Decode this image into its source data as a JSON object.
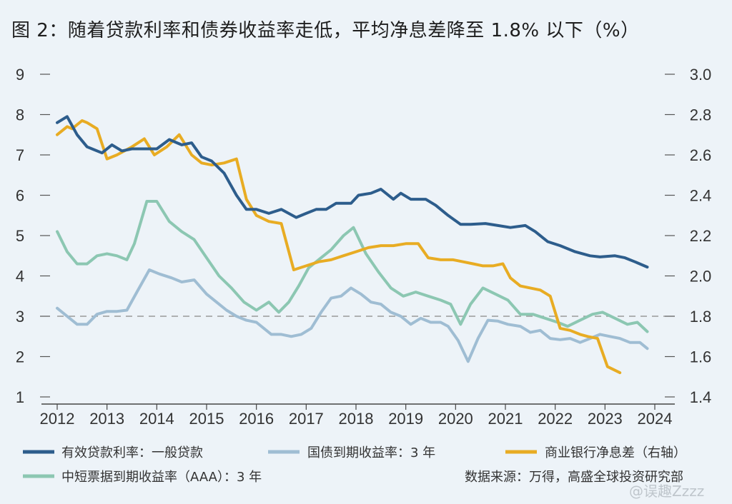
{
  "title": "图 2：随着贷款利率和债券收益率走低，平均净息差降至 1.8% 以下（%）",
  "source": "数据来源：万得，高盛全球投资研究部",
  "watermark": "@误趣Zzzz",
  "colors": {
    "lending": "#2d5d8c",
    "treasury": "#9fbdd3",
    "nim": "#e8ac23",
    "cp": "#8cc7b2"
  },
  "chart_data": {
    "type": "line",
    "x_ticks": [
      "2012",
      "2013",
      "2014",
      "2015",
      "2016",
      "2017",
      "2018",
      "2019",
      "2020",
      "2021",
      "2022",
      "2023",
      "2024"
    ],
    "y_left": {
      "ticks": [
        "1",
        "2",
        "3",
        "4",
        "5",
        "6",
        "7",
        "8",
        "9"
      ],
      "range": [
        1,
        9
      ]
    },
    "y_right": {
      "ticks": [
        "1.4",
        "1.6",
        "1.8",
        "2.0",
        "2.2",
        "2.4",
        "2.6",
        "2.8",
        "3.0"
      ],
      "range": [
        1.4,
        3.0
      ]
    },
    "reference_line": {
      "axis": "left",
      "value": 3,
      "style": "dashed"
    },
    "series": [
      {
        "name": "有效贷款利率：一般贷款",
        "axis": "left",
        "color_key": "lending",
        "points": [
          [
            2012.0,
            7.8
          ],
          [
            2012.2,
            7.95
          ],
          [
            2012.4,
            7.5
          ],
          [
            2012.6,
            7.2
          ],
          [
            2012.9,
            7.05
          ],
          [
            2013.1,
            7.25
          ],
          [
            2013.3,
            7.1
          ],
          [
            2013.5,
            7.15
          ],
          [
            2013.75,
            7.15
          ],
          [
            2014.0,
            7.15
          ],
          [
            2014.25,
            7.38
          ],
          [
            2014.5,
            7.25
          ],
          [
            2014.7,
            7.3
          ],
          [
            2014.9,
            6.95
          ],
          [
            2015.1,
            6.85
          ],
          [
            2015.35,
            6.55
          ],
          [
            2015.6,
            6.0
          ],
          [
            2015.8,
            5.65
          ],
          [
            2016.0,
            5.65
          ],
          [
            2016.25,
            5.55
          ],
          [
            2016.5,
            5.65
          ],
          [
            2016.8,
            5.45
          ],
          [
            2017.0,
            5.55
          ],
          [
            2017.2,
            5.65
          ],
          [
            2017.4,
            5.65
          ],
          [
            2017.6,
            5.8
          ],
          [
            2017.9,
            5.8
          ],
          [
            2018.05,
            6.0
          ],
          [
            2018.3,
            6.05
          ],
          [
            2018.5,
            6.15
          ],
          [
            2018.75,
            5.9
          ],
          [
            2018.9,
            6.05
          ],
          [
            2019.1,
            5.9
          ],
          [
            2019.4,
            5.9
          ],
          [
            2019.6,
            5.75
          ],
          [
            2019.85,
            5.5
          ],
          [
            2020.1,
            5.28
          ],
          [
            2020.3,
            5.28
          ],
          [
            2020.6,
            5.3
          ],
          [
            2020.85,
            5.25
          ],
          [
            2021.1,
            5.2
          ],
          [
            2021.4,
            5.25
          ],
          [
            2021.6,
            5.1
          ],
          [
            2021.85,
            4.85
          ],
          [
            2022.1,
            4.75
          ],
          [
            2022.4,
            4.6
          ],
          [
            2022.7,
            4.5
          ],
          [
            2022.9,
            4.47
          ],
          [
            2023.2,
            4.5
          ],
          [
            2023.4,
            4.45
          ],
          [
            2023.6,
            4.35
          ],
          [
            2023.85,
            4.22
          ]
        ]
      },
      {
        "name": "国债到期收益率：3 年",
        "axis": "left",
        "color_key": "treasury",
        "points": [
          [
            2012.0,
            3.2
          ],
          [
            2012.2,
            3.0
          ],
          [
            2012.4,
            2.8
          ],
          [
            2012.6,
            2.8
          ],
          [
            2012.8,
            3.05
          ],
          [
            2013.0,
            3.12
          ],
          [
            2013.2,
            3.12
          ],
          [
            2013.4,
            3.15
          ],
          [
            2013.6,
            3.6
          ],
          [
            2013.85,
            4.15
          ],
          [
            2014.05,
            4.05
          ],
          [
            2014.3,
            3.95
          ],
          [
            2014.5,
            3.85
          ],
          [
            2014.75,
            3.9
          ],
          [
            2015.0,
            3.55
          ],
          [
            2015.2,
            3.35
          ],
          [
            2015.4,
            3.15
          ],
          [
            2015.6,
            3.0
          ],
          [
            2015.8,
            2.9
          ],
          [
            2016.0,
            2.85
          ],
          [
            2016.15,
            2.7
          ],
          [
            2016.3,
            2.55
          ],
          [
            2016.5,
            2.55
          ],
          [
            2016.7,
            2.5
          ],
          [
            2016.9,
            2.55
          ],
          [
            2017.1,
            2.7
          ],
          [
            2017.3,
            3.1
          ],
          [
            2017.5,
            3.45
          ],
          [
            2017.7,
            3.5
          ],
          [
            2017.9,
            3.7
          ],
          [
            2018.1,
            3.55
          ],
          [
            2018.3,
            3.35
          ],
          [
            2018.5,
            3.3
          ],
          [
            2018.7,
            3.1
          ],
          [
            2018.9,
            3.0
          ],
          [
            2019.1,
            2.8
          ],
          [
            2019.3,
            2.95
          ],
          [
            2019.5,
            2.85
          ],
          [
            2019.7,
            2.85
          ],
          [
            2019.85,
            2.75
          ],
          [
            2020.05,
            2.4
          ],
          [
            2020.25,
            1.88
          ],
          [
            2020.45,
            2.45
          ],
          [
            2020.65,
            2.9
          ],
          [
            2020.85,
            2.88
          ],
          [
            2021.05,
            2.8
          ],
          [
            2021.3,
            2.75
          ],
          [
            2021.5,
            2.6
          ],
          [
            2021.7,
            2.65
          ],
          [
            2021.9,
            2.45
          ],
          [
            2022.1,
            2.42
          ],
          [
            2022.3,
            2.45
          ],
          [
            2022.5,
            2.35
          ],
          [
            2022.7,
            2.45
          ],
          [
            2022.9,
            2.55
          ],
          [
            2023.1,
            2.5
          ],
          [
            2023.3,
            2.45
          ],
          [
            2023.5,
            2.35
          ],
          [
            2023.7,
            2.35
          ],
          [
            2023.85,
            2.2
          ]
        ]
      },
      {
        "name": "商业银行净息差（右轴）",
        "axis": "right",
        "color_key": "nim",
        "points": [
          [
            2012.0,
            2.7
          ],
          [
            2012.2,
            2.74
          ],
          [
            2012.3,
            2.73
          ],
          [
            2012.5,
            2.77
          ],
          [
            2012.6,
            2.76
          ],
          [
            2012.8,
            2.73
          ],
          [
            2013.0,
            2.58
          ],
          [
            2013.2,
            2.6
          ],
          [
            2013.5,
            2.64
          ],
          [
            2013.75,
            2.68
          ],
          [
            2013.95,
            2.6
          ],
          [
            2014.2,
            2.64
          ],
          [
            2014.45,
            2.7
          ],
          [
            2014.7,
            2.6
          ],
          [
            2014.9,
            2.56
          ],
          [
            2015.1,
            2.55
          ],
          [
            2015.35,
            2.56
          ],
          [
            2015.6,
            2.58
          ],
          [
            2015.8,
            2.38
          ],
          [
            2016.0,
            2.3
          ],
          [
            2016.25,
            2.27
          ],
          [
            2016.5,
            2.26
          ],
          [
            2016.75,
            2.03
          ],
          [
            2017.0,
            2.05
          ],
          [
            2017.25,
            2.07
          ],
          [
            2017.5,
            2.08
          ],
          [
            2017.75,
            2.1
          ],
          [
            2018.0,
            2.12
          ],
          [
            2018.25,
            2.14
          ],
          [
            2018.5,
            2.15
          ],
          [
            2018.75,
            2.15
          ],
          [
            2019.0,
            2.16
          ],
          [
            2019.25,
            2.16
          ],
          [
            2019.45,
            2.09
          ],
          [
            2019.7,
            2.08
          ],
          [
            2019.95,
            2.08
          ],
          [
            2020.15,
            2.07
          ],
          [
            2020.35,
            2.06
          ],
          [
            2020.55,
            2.05
          ],
          [
            2020.75,
            2.05
          ],
          [
            2020.95,
            2.06
          ],
          [
            2021.1,
            1.99
          ],
          [
            2021.3,
            1.95
          ],
          [
            2021.5,
            1.94
          ],
          [
            2021.7,
            1.93
          ],
          [
            2021.9,
            1.9
          ],
          [
            2022.1,
            1.74
          ],
          [
            2022.3,
            1.73
          ],
          [
            2022.5,
            1.71
          ],
          [
            2022.65,
            1.7
          ],
          [
            2022.85,
            1.69
          ],
          [
            2023.05,
            1.55
          ],
          [
            2023.3,
            1.52
          ]
        ]
      },
      {
        "name": "中短票据到期收益率（AAA）：3 年",
        "axis": "left",
        "color_key": "cp",
        "points": [
          [
            2012.0,
            5.1
          ],
          [
            2012.2,
            4.6
          ],
          [
            2012.4,
            4.3
          ],
          [
            2012.6,
            4.3
          ],
          [
            2012.8,
            4.5
          ],
          [
            2013.0,
            4.55
          ],
          [
            2013.2,
            4.5
          ],
          [
            2013.4,
            4.4
          ],
          [
            2013.55,
            4.8
          ],
          [
            2013.8,
            5.85
          ],
          [
            2014.0,
            5.85
          ],
          [
            2014.25,
            5.35
          ],
          [
            2014.5,
            5.1
          ],
          [
            2014.75,
            4.9
          ],
          [
            2015.0,
            4.45
          ],
          [
            2015.25,
            4.0
          ],
          [
            2015.5,
            3.7
          ],
          [
            2015.75,
            3.35
          ],
          [
            2016.0,
            3.15
          ],
          [
            2016.25,
            3.35
          ],
          [
            2016.45,
            3.1
          ],
          [
            2016.65,
            3.35
          ],
          [
            2016.85,
            3.75
          ],
          [
            2017.05,
            4.2
          ],
          [
            2017.3,
            4.45
          ],
          [
            2017.5,
            4.65
          ],
          [
            2017.75,
            5.0
          ],
          [
            2017.95,
            5.2
          ],
          [
            2018.2,
            4.55
          ],
          [
            2018.45,
            4.1
          ],
          [
            2018.7,
            3.7
          ],
          [
            2018.95,
            3.5
          ],
          [
            2019.2,
            3.6
          ],
          [
            2019.45,
            3.5
          ],
          [
            2019.7,
            3.4
          ],
          [
            2019.9,
            3.3
          ],
          [
            2020.1,
            2.8
          ],
          [
            2020.3,
            3.3
          ],
          [
            2020.55,
            3.7
          ],
          [
            2020.8,
            3.55
          ],
          [
            2021.05,
            3.4
          ],
          [
            2021.3,
            3.05
          ],
          [
            2021.55,
            3.05
          ],
          [
            2021.8,
            2.95
          ],
          [
            2022.05,
            2.85
          ],
          [
            2022.25,
            2.75
          ],
          [
            2022.5,
            2.9
          ],
          [
            2022.75,
            3.05
          ],
          [
            2022.95,
            3.1
          ],
          [
            2023.2,
            2.95
          ],
          [
            2023.45,
            2.8
          ],
          [
            2023.65,
            2.85
          ],
          [
            2023.85,
            2.62
          ]
        ]
      }
    ],
    "legend": [
      "有效贷款利率：一般贷款",
      "国债到期收益率：3 年",
      "商业银行净息差（右轴）",
      "中短票据到期收益率（AAA）：3 年"
    ]
  }
}
